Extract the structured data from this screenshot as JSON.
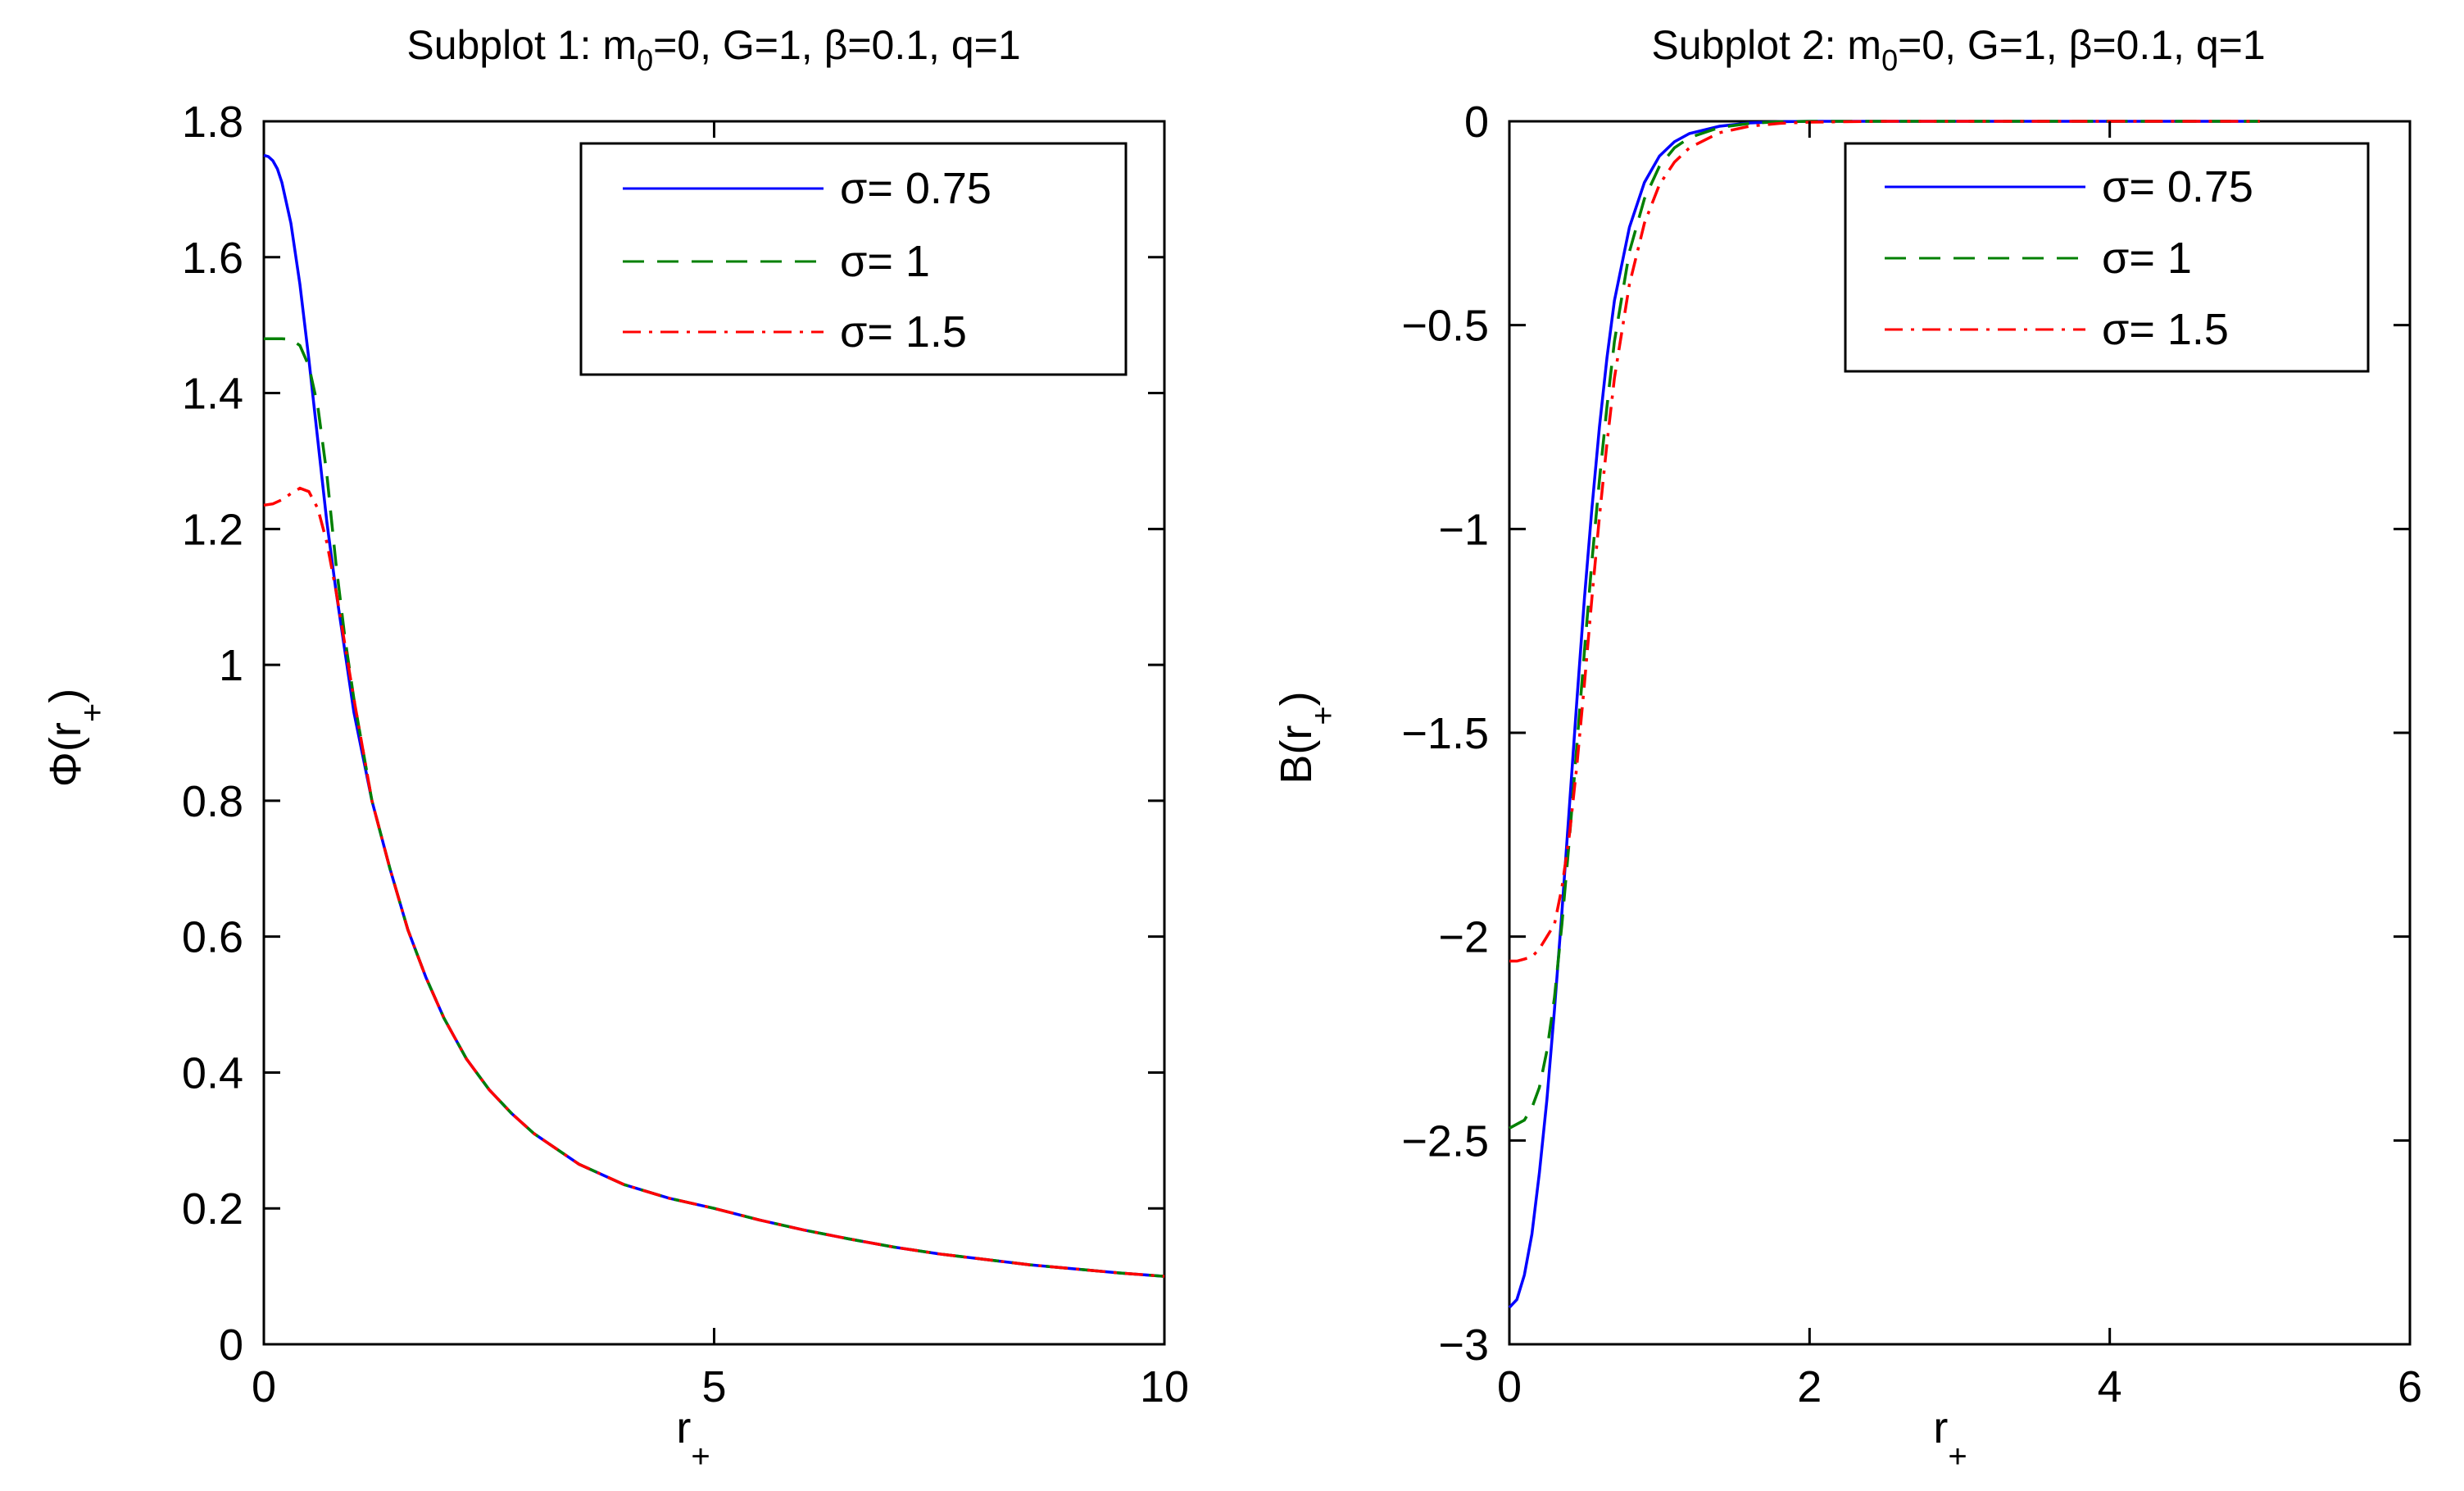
{
  "chart_data": [
    {
      "type": "line",
      "title_prefix": "Subplot 1: m",
      "title_sub": "0",
      "title_suffix": "=0, G=1, β=0.1, q=1",
      "xlabel_main": "r",
      "xlabel_sub": "+",
      "ylabel_main": "Φ(r",
      "ylabel_sub": "+",
      "ylabel_close": ")",
      "xlim": [
        0,
        10
      ],
      "ylim": [
        0,
        1.8
      ],
      "xticks": [
        0,
        5,
        10
      ],
      "xtick_labels": [
        "0",
        "5",
        "10"
      ],
      "yticks": [
        0,
        0.2,
        0.4,
        0.6,
        0.8,
        1.0,
        1.2,
        1.4,
        1.6,
        1.8
      ],
      "ytick_labels": [
        "0",
        "0.2",
        "0.4",
        "0.6",
        "0.8",
        "1",
        "1.2",
        "1.4",
        "1.6",
        "1.8"
      ],
      "legend_position": "top-right",
      "grid": false,
      "series": [
        {
          "name": "σ= 0.75",
          "color": "#0000ff",
          "dash": "solid",
          "points": [
            [
              0,
              1.75
            ],
            [
              0.05,
              1.748
            ],
            [
              0.1,
              1.742
            ],
            [
              0.15,
              1.73
            ],
            [
              0.2,
              1.71
            ],
            [
              0.3,
              1.65
            ],
            [
              0.4,
              1.56
            ],
            [
              0.5,
              1.45
            ],
            [
              0.6,
              1.33
            ],
            [
              0.7,
              1.21
            ],
            [
              0.8,
              1.11
            ],
            [
              0.9,
              1.02
            ],
            [
              1.0,
              0.93
            ],
            [
              1.2,
              0.8
            ],
            [
              1.4,
              0.7
            ],
            [
              1.6,
              0.61
            ],
            [
              1.8,
              0.54
            ],
            [
              2.0,
              0.48
            ],
            [
              2.25,
              0.42
            ],
            [
              2.5,
              0.375
            ],
            [
              2.75,
              0.34
            ],
            [
              3.0,
              0.31
            ],
            [
              3.5,
              0.265
            ],
            [
              4.0,
              0.235
            ],
            [
              4.5,
              0.215
            ],
            [
              5.0,
              0.2
            ],
            [
              5.5,
              0.183
            ],
            [
              6.0,
              0.168
            ],
            [
              6.5,
              0.155
            ],
            [
              7.0,
              0.143
            ],
            [
              7.5,
              0.133
            ],
            [
              8.0,
              0.125
            ],
            [
              8.5,
              0.117
            ],
            [
              9.0,
              0.111
            ],
            [
              9.5,
              0.105
            ],
            [
              10.0,
              0.1
            ]
          ]
        },
        {
          "name": "σ= 1",
          "color": "#008000",
          "dash": "dashed",
          "points": [
            [
              0,
              1.48
            ],
            [
              0.1,
              1.48
            ],
            [
              0.2,
              1.48
            ],
            [
              0.3,
              1.479
            ],
            [
              0.4,
              1.47
            ],
            [
              0.5,
              1.44
            ],
            [
              0.6,
              1.38
            ],
            [
              0.7,
              1.28
            ],
            [
              0.8,
              1.15
            ],
            [
              0.9,
              1.04
            ],
            [
              1.0,
              0.95
            ],
            [
              1.2,
              0.8
            ],
            [
              1.4,
              0.7
            ],
            [
              1.6,
              0.61
            ],
            [
              1.8,
              0.54
            ],
            [
              2.0,
              0.48
            ],
            [
              2.25,
              0.42
            ],
            [
              2.5,
              0.375
            ],
            [
              2.75,
              0.34
            ],
            [
              3.0,
              0.31
            ],
            [
              3.5,
              0.265
            ],
            [
              4.0,
              0.235
            ],
            [
              4.5,
              0.215
            ],
            [
              5.0,
              0.2
            ],
            [
              5.5,
              0.183
            ],
            [
              6.0,
              0.168
            ],
            [
              6.5,
              0.155
            ],
            [
              7.0,
              0.143
            ],
            [
              7.5,
              0.133
            ],
            [
              8.0,
              0.125
            ],
            [
              8.5,
              0.117
            ],
            [
              9.0,
              0.111
            ],
            [
              9.5,
              0.105
            ],
            [
              10.0,
              0.1
            ]
          ]
        },
        {
          "name": "σ= 1.5",
          "color": "#ff0000",
          "dash": "dashdot",
          "points": [
            [
              0,
              1.235
            ],
            [
              0.1,
              1.237
            ],
            [
              0.2,
              1.243
            ],
            [
              0.3,
              1.252
            ],
            [
              0.4,
              1.26
            ],
            [
              0.5,
              1.255
            ],
            [
              0.6,
              1.23
            ],
            [
              0.7,
              1.18
            ],
            [
              0.8,
              1.11
            ],
            [
              0.9,
              1.03
            ],
            [
              1.0,
              0.95
            ],
            [
              1.2,
              0.8
            ],
            [
              1.4,
              0.7
            ],
            [
              1.6,
              0.61
            ],
            [
              1.8,
              0.54
            ],
            [
              2.0,
              0.48
            ],
            [
              2.25,
              0.42
            ],
            [
              2.5,
              0.375
            ],
            [
              2.75,
              0.34
            ],
            [
              3.0,
              0.31
            ],
            [
              3.5,
              0.265
            ],
            [
              4.0,
              0.235
            ],
            [
              4.5,
              0.215
            ],
            [
              5.0,
              0.2
            ],
            [
              5.5,
              0.183
            ],
            [
              6.0,
              0.168
            ],
            [
              6.5,
              0.155
            ],
            [
              7.0,
              0.143
            ],
            [
              7.5,
              0.133
            ],
            [
              8.0,
              0.125
            ],
            [
              8.5,
              0.117
            ],
            [
              9.0,
              0.111
            ],
            [
              9.5,
              0.105
            ],
            [
              10.0,
              0.1
            ]
          ]
        }
      ]
    },
    {
      "type": "line",
      "title_prefix": "Subplot 2: m",
      "title_sub": "0",
      "title_suffix": "=0, G=1, β=0.1, q=1",
      "xlabel_main": "r",
      "xlabel_sub": "+",
      "ylabel_main": "B(r",
      "ylabel_sub": "+",
      "ylabel_close": ")",
      "xlim": [
        0,
        6
      ],
      "ylim": [
        -3,
        0
      ],
      "xticks": [
        0,
        2,
        4,
        6
      ],
      "xtick_labels": [
        "0",
        "2",
        "4",
        "6"
      ],
      "yticks": [
        -3,
        -2.5,
        -2,
        -1.5,
        -1,
        -0.5,
        0
      ],
      "ytick_labels": [
        "−3",
        "−2.5",
        "−2",
        "−1.5",
        "−1",
        "−0.5",
        "0"
      ],
      "legend_position": "top-right",
      "grid": false,
      "series": [
        {
          "name": "σ= 0.75",
          "color": "#0000ff",
          "dash": "solid",
          "points": [
            [
              0,
              -2.91
            ],
            [
              0.05,
              -2.89
            ],
            [
              0.1,
              -2.83
            ],
            [
              0.15,
              -2.73
            ],
            [
              0.2,
              -2.58
            ],
            [
              0.25,
              -2.4
            ],
            [
              0.3,
              -2.18
            ],
            [
              0.35,
              -1.94
            ],
            [
              0.4,
              -1.68
            ],
            [
              0.45,
              -1.42
            ],
            [
              0.5,
              -1.17
            ],
            [
              0.55,
              -0.95
            ],
            [
              0.6,
              -0.75
            ],
            [
              0.65,
              -0.58
            ],
            [
              0.7,
              -0.44
            ],
            [
              0.8,
              -0.26
            ],
            [
              0.9,
              -0.15
            ],
            [
              1.0,
              -0.085
            ],
            [
              1.1,
              -0.05
            ],
            [
              1.2,
              -0.03
            ],
            [
              1.4,
              -0.012
            ],
            [
              1.6,
              -0.004
            ],
            [
              1.8,
              -0.001
            ],
            [
              2.0,
              0
            ],
            [
              3.0,
              0
            ],
            [
              4.0,
              0
            ],
            [
              5.0,
              0
            ]
          ]
        },
        {
          "name": "σ= 1",
          "color": "#008000",
          "dash": "dashed",
          "points": [
            [
              0,
              -2.47
            ],
            [
              0.05,
              -2.46
            ],
            [
              0.1,
              -2.45
            ],
            [
              0.15,
              -2.42
            ],
            [
              0.2,
              -2.37
            ],
            [
              0.25,
              -2.28
            ],
            [
              0.3,
              -2.15
            ],
            [
              0.35,
              -1.97
            ],
            [
              0.4,
              -1.76
            ],
            [
              0.45,
              -1.53
            ],
            [
              0.5,
              -1.3
            ],
            [
              0.55,
              -1.08
            ],
            [
              0.6,
              -0.88
            ],
            [
              0.65,
              -0.7
            ],
            [
              0.7,
              -0.54
            ],
            [
              0.8,
              -0.32
            ],
            [
              0.9,
              -0.19
            ],
            [
              1.0,
              -0.11
            ],
            [
              1.1,
              -0.065
            ],
            [
              1.2,
              -0.04
            ],
            [
              1.4,
              -0.015
            ],
            [
              1.6,
              -0.005
            ],
            [
              1.8,
              -0.001
            ],
            [
              2.0,
              0
            ],
            [
              3.0,
              0
            ],
            [
              4.0,
              0
            ],
            [
              5.0,
              0
            ]
          ]
        },
        {
          "name": "σ= 1.5",
          "color": "#ff0000",
          "dash": "dashdot",
          "points": [
            [
              0,
              -2.06
            ],
            [
              0.05,
              -2.06
            ],
            [
              0.1,
              -2.055
            ],
            [
              0.15,
              -2.05
            ],
            [
              0.2,
              -2.03
            ],
            [
              0.25,
              -2.0
            ],
            [
              0.3,
              -1.97
            ],
            [
              0.35,
              -1.88
            ],
            [
              0.4,
              -1.75
            ],
            [
              0.45,
              -1.58
            ],
            [
              0.5,
              -1.38
            ],
            [
              0.55,
              -1.17
            ],
            [
              0.6,
              -0.97
            ],
            [
              0.65,
              -0.79
            ],
            [
              0.7,
              -0.63
            ],
            [
              0.8,
              -0.4
            ],
            [
              0.9,
              -0.25
            ],
            [
              1.0,
              -0.155
            ],
            [
              1.1,
              -0.1
            ],
            [
              1.2,
              -0.065
            ],
            [
              1.4,
              -0.028
            ],
            [
              1.6,
              -0.012
            ],
            [
              1.8,
              -0.005
            ],
            [
              2.0,
              -0.002
            ],
            [
              2.5,
              0
            ],
            [
              3.0,
              0
            ],
            [
              4.0,
              0
            ],
            [
              5.0,
              0
            ]
          ]
        }
      ]
    }
  ]
}
